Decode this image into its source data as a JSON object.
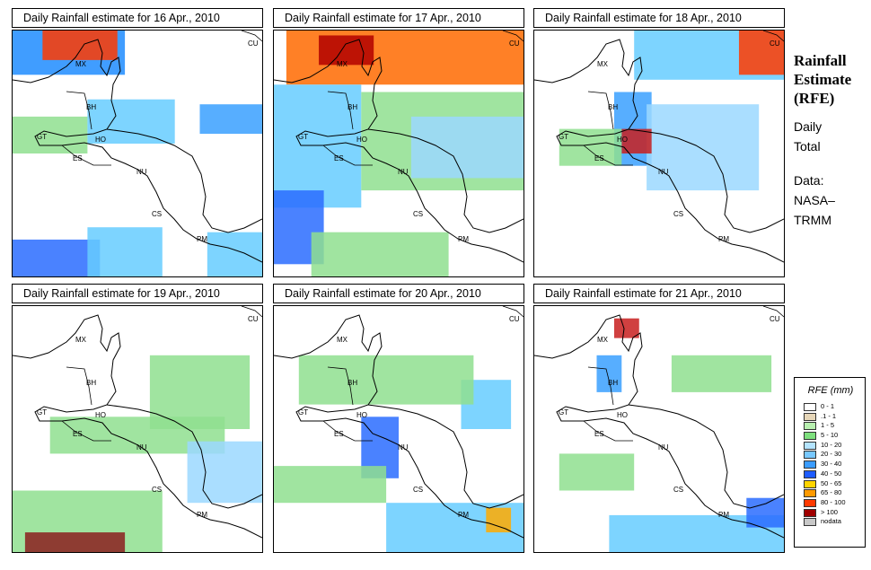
{
  "panels": [
    {
      "title": "Daily Rainfall estimate for  16 Apr., 2010",
      "rain": [
        [
          0.0,
          0.0,
          0.45,
          0.18,
          "#1e8cff"
        ],
        [
          0.12,
          0.0,
          0.3,
          0.12,
          "#ff3a00"
        ],
        [
          0.0,
          0.35,
          0.3,
          0.15,
          "#8fdf8f"
        ],
        [
          0.3,
          0.28,
          0.35,
          0.18,
          "#66ccff"
        ],
        [
          0.75,
          0.3,
          0.25,
          0.12,
          "#3aa0ff"
        ],
        [
          0.0,
          0.85,
          0.35,
          0.15,
          "#2a6cff"
        ],
        [
          0.3,
          0.8,
          0.3,
          0.2,
          "#66ccff"
        ],
        [
          0.78,
          0.82,
          0.22,
          0.18,
          "#66ccff"
        ]
      ]
    },
    {
      "title": "Daily Rainfall estimate for  17 Apr., 2010",
      "rain": [
        [
          0.05,
          0.0,
          0.95,
          0.22,
          "#ff6a00"
        ],
        [
          0.18,
          0.02,
          0.22,
          0.12,
          "#b20000"
        ],
        [
          0.0,
          0.22,
          0.35,
          0.5,
          "#66ccff"
        ],
        [
          0.0,
          0.65,
          0.2,
          0.3,
          "#2a6cff"
        ],
        [
          0.35,
          0.25,
          0.65,
          0.4,
          "#8fdf8f"
        ],
        [
          0.55,
          0.35,
          0.45,
          0.25,
          "#9bd8ff"
        ],
        [
          0.15,
          0.82,
          0.55,
          0.18,
          "#8fdf8f"
        ]
      ]
    },
    {
      "title": "Daily Rainfall estimate for  18 Apr., 2010",
      "rain": [
        [
          0.4,
          0.0,
          0.6,
          0.2,
          "#66ccff"
        ],
        [
          0.82,
          0.0,
          0.18,
          0.18,
          "#ff3a00"
        ],
        [
          0.32,
          0.25,
          0.15,
          0.3,
          "#3aa0ff"
        ],
        [
          0.45,
          0.3,
          0.45,
          0.35,
          "#9bd8ff"
        ],
        [
          0.35,
          0.4,
          0.12,
          0.1,
          "#c81e1e"
        ],
        [
          0.1,
          0.4,
          0.25,
          0.15,
          "#8fdf8f"
        ]
      ]
    },
    {
      "title": "Daily Rainfall estimate for  19 Apr., 2010",
      "rain": [
        [
          0.55,
          0.2,
          0.4,
          0.3,
          "#8fdf8f"
        ],
        [
          0.15,
          0.45,
          0.7,
          0.15,
          "#8fdf8f"
        ],
        [
          0.0,
          0.75,
          0.6,
          0.25,
          "#8fdf8f"
        ],
        [
          0.05,
          0.92,
          0.4,
          0.08,
          "#8b1e1e"
        ],
        [
          0.7,
          0.55,
          0.3,
          0.25,
          "#9bd8ff"
        ]
      ]
    },
    {
      "title": "Daily Rainfall estimate for  20 Apr., 2010",
      "rain": [
        [
          0.35,
          0.45,
          0.15,
          0.25,
          "#2a6cff"
        ],
        [
          0.75,
          0.3,
          0.2,
          0.2,
          "#66ccff"
        ],
        [
          0.1,
          0.2,
          0.7,
          0.2,
          "#8fdf8f"
        ],
        [
          0.45,
          0.8,
          0.55,
          0.2,
          "#66ccff"
        ],
        [
          0.85,
          0.82,
          0.1,
          0.1,
          "#ffaa00"
        ],
        [
          0.0,
          0.65,
          0.45,
          0.15,
          "#8fdf8f"
        ]
      ]
    },
    {
      "title": "Daily Rainfall estimate for  21 Apr., 2010",
      "rain": [
        [
          0.32,
          0.05,
          0.1,
          0.08,
          "#c81e1e"
        ],
        [
          0.25,
          0.2,
          0.1,
          0.15,
          "#3aa0ff"
        ],
        [
          0.55,
          0.2,
          0.4,
          0.15,
          "#8fdf8f"
        ],
        [
          0.3,
          0.85,
          0.7,
          0.15,
          "#66ccff"
        ],
        [
          0.85,
          0.78,
          0.15,
          0.12,
          "#2a6cff"
        ],
        [
          0.1,
          0.6,
          0.3,
          0.15,
          "#8fdf8f"
        ]
      ]
    }
  ],
  "region_labels": [
    "CU",
    "MX",
    "BH",
    "GT",
    "HO",
    "ES",
    "NU",
    "CS",
    "PM"
  ],
  "sidebar": {
    "title_line1": "Rainfall",
    "title_line2": "Estimate",
    "title_line3": "(RFE)",
    "daily_line1": "Daily",
    "daily_line2": "Total",
    "data_line1": "Data:",
    "data_line2": "NASA–",
    "data_line3": "TRMM"
  },
  "legend": {
    "title": "RFE (mm)",
    "items": [
      {
        "label": "0 - 1",
        "color": "#ffffff"
      },
      {
        "label": ".1 - 1",
        "color": "#e6d6b8"
      },
      {
        "label": "1 - 5",
        "color": "#b8f0b0"
      },
      {
        "label": "5 - 10",
        "color": "#7ee07e"
      },
      {
        "label": "10 - 20",
        "color": "#b4e4ff"
      },
      {
        "label": "20 - 30",
        "color": "#78c8ff"
      },
      {
        "label": "30 - 40",
        "color": "#3a9cff"
      },
      {
        "label": "40 - 50",
        "color": "#1e5cff"
      },
      {
        "label": "50 - 65",
        "color": "#ffd400"
      },
      {
        "label": "65 - 80",
        "color": "#ff9a00"
      },
      {
        "label": "80 - 100",
        "color": "#ff3a00"
      },
      {
        "label": "> 100",
        "color": "#a00000"
      },
      {
        "label": "nodata",
        "color": "#c8c8c8"
      }
    ]
  }
}
